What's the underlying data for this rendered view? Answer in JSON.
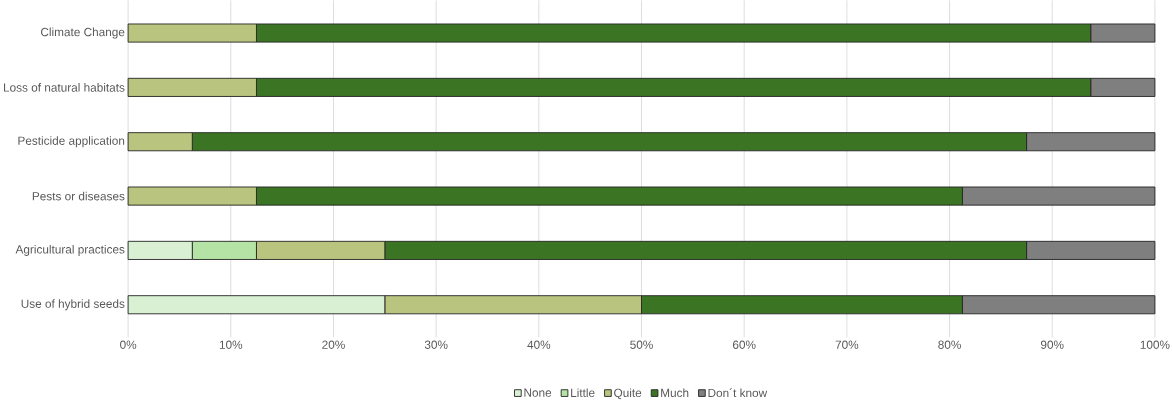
{
  "chart_data": {
    "type": "bar",
    "orientation": "horizontal",
    "stacked": true,
    "categories": [
      "Climate Change",
      "Loss of natural habitats",
      "Pesticide application",
      "Pests or diseases",
      "Agricultural practices",
      "Use of hybrid seeds"
    ],
    "series": [
      {
        "name": "None",
        "color": "#daf0d3",
        "values": [
          0,
          0,
          0,
          0,
          6.25,
          25
        ]
      },
      {
        "name": "Little",
        "color": "#b4e3a5",
        "values": [
          0,
          0,
          0,
          0,
          6.25,
          0
        ]
      },
      {
        "name": "Quite",
        "color": "#b9c47e",
        "values": [
          12.5,
          12.5,
          6.25,
          12.5,
          12.5,
          25
        ]
      },
      {
        "name": "Much",
        "color": "#3b7524",
        "values": [
          81.25,
          81.25,
          81.25,
          68.75,
          62.5,
          31.25
        ]
      },
      {
        "name": "Don´t know",
        "color": "#7f7f7f",
        "values": [
          6.25,
          6.25,
          12.5,
          18.75,
          12.5,
          18.75
        ]
      }
    ],
    "xlim": [
      0,
      100
    ],
    "xticks": [
      {
        "value": 0,
        "label": "0%"
      },
      {
        "value": 10,
        "label": "10%"
      },
      {
        "value": 20,
        "label": "20%"
      },
      {
        "value": 30,
        "label": "30%"
      },
      {
        "value": 40,
        "label": "40%"
      },
      {
        "value": 50,
        "label": "50%"
      },
      {
        "value": 60,
        "label": "60%"
      },
      {
        "value": 70,
        "label": "70%"
      },
      {
        "value": 80,
        "label": "80%"
      },
      {
        "value": 90,
        "label": "90%"
      },
      {
        "value": 100,
        "label": "100%"
      }
    ],
    "grid": "x",
    "legend": "bottom"
  }
}
